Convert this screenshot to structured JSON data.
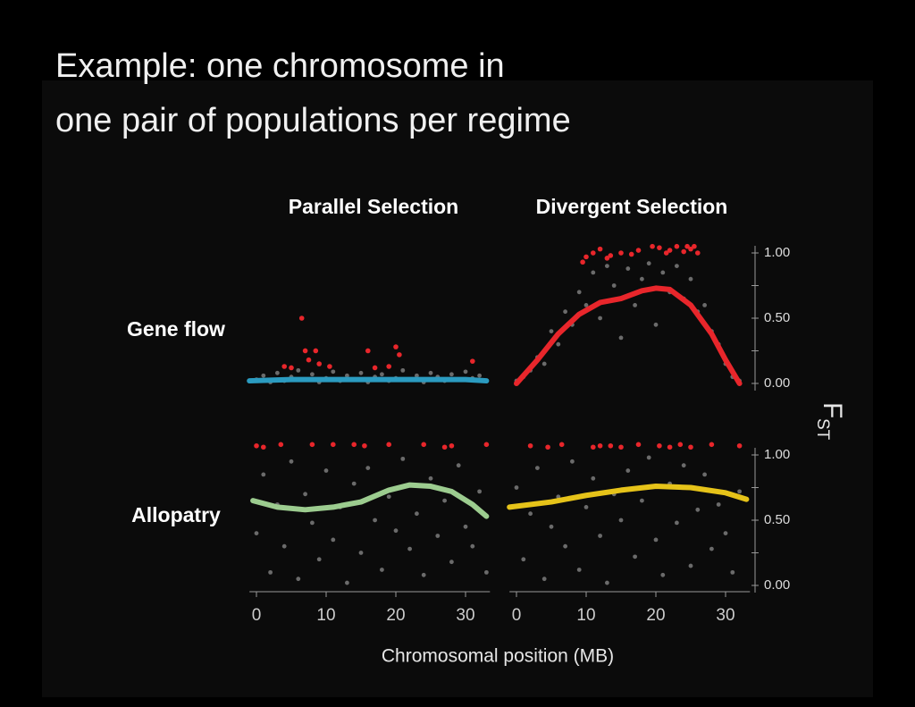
{
  "slide": {
    "title_lines": [
      "Example: one chromosome in",
      "one pair of populations per regime"
    ],
    "columns": [
      "Parallel Selection",
      "Divergent Selection"
    ],
    "rows": [
      "Gene flow",
      "Allopatry"
    ],
    "x_label": "Chromosomal position (MB)",
    "y_label": "F",
    "y_label_sub": "ST"
  },
  "chart_data": [
    {
      "type": "scatter",
      "xlim": [
        -1,
        33.5
      ],
      "ylim": [
        -0.07,
        1.1
      ],
      "series": [
        {
          "kind": "points",
          "color": "#6b6b6b",
          "x": [
            0,
            1,
            2,
            3,
            4,
            5,
            6,
            7,
            8,
            9,
            10,
            11,
            12,
            13,
            14,
            15,
            16,
            17,
            18,
            19,
            20,
            21,
            22,
            23,
            24,
            25,
            26,
            27,
            28,
            29,
            30,
            31,
            32,
            33
          ],
          "values": [
            0.03,
            0.06,
            0.01,
            0.08,
            0.02,
            0.05,
            0.1,
            0.03,
            0.07,
            0.01,
            0.04,
            0.09,
            0.02,
            0.06,
            0.03,
            0.08,
            0.01,
            0.05,
            0.07,
            0.02,
            0.04,
            0.1,
            0.03,
            0.06,
            0.01,
            0.08,
            0.05,
            0.02,
            0.07,
            0.03,
            0.09,
            0.04,
            0.06,
            0.02
          ]
        },
        {
          "kind": "points",
          "color": "#e8262b",
          "x": [
            4,
            5,
            6.5,
            7,
            7.5,
            8.5,
            9,
            10.5,
            16,
            17,
            19,
            20,
            20.5,
            31
          ],
          "values": [
            0.13,
            0.12,
            0.5,
            0.25,
            0.18,
            0.25,
            0.15,
            0.13,
            0.25,
            0.12,
            0.13,
            0.28,
            0.22,
            0.17
          ]
        },
        {
          "kind": "line",
          "color": "#2b9bc0",
          "x": [
            -1,
            5,
            10,
            15,
            20,
            25,
            30,
            33
          ],
          "values": [
            0.02,
            0.03,
            0.03,
            0.03,
            0.03,
            0.03,
            0.03,
            0.02
          ]
        }
      ]
    },
    {
      "type": "scatter",
      "xlim": [
        -1,
        33.5
      ],
      "ylim": [
        -0.07,
        1.1
      ],
      "yticks": [
        {
          "value": 0,
          "label": "0.00"
        },
        {
          "value": 0.5,
          "label": "0.50"
        },
        {
          "value": 1,
          "label": "1.00"
        }
      ],
      "yminor_ticks": [
        0.25,
        0.75
      ],
      "series": [
        {
          "kind": "points",
          "color": "#6b6b6b",
          "x": [
            0,
            1,
            2,
            3,
            4,
            5,
            6,
            7,
            8,
            9,
            10,
            11,
            12,
            13,
            14,
            15,
            16,
            17,
            18,
            19,
            20,
            21,
            22,
            23,
            24,
            25,
            26,
            27,
            28,
            29,
            30,
            31,
            32
          ],
          "values": [
            0.02,
            0.05,
            0.1,
            0.2,
            0.15,
            0.4,
            0.3,
            0.55,
            0.45,
            0.7,
            0.6,
            0.85,
            0.5,
            0.9,
            0.75,
            0.35,
            0.88,
            0.6,
            0.8,
            0.92,
            0.45,
            0.85,
            0.7,
            0.9,
            0.65,
            0.8,
            0.55,
            0.6,
            0.4,
            0.3,
            0.15,
            0.05,
            0.02
          ]
        },
        {
          "kind": "points",
          "color": "#e8262b",
          "x": [
            9.5,
            10,
            11,
            12,
            13,
            13.5,
            15,
            16.5,
            17.5,
            19.5,
            20.5,
            21.5,
            22,
            23,
            24,
            24.5,
            25,
            25.5,
            26
          ],
          "values": [
            0.93,
            0.97,
            1.0,
            1.03,
            0.96,
            0.98,
            1.0,
            0.99,
            1.02,
            1.05,
            1.04,
            1.0,
            1.02,
            1.05,
            1.01,
            1.05,
            1.03,
            1.05,
            1.0
          ]
        },
        {
          "kind": "line",
          "color": "#e8262b",
          "x": [
            0,
            3,
            6,
            9,
            12,
            15,
            18,
            20,
            22,
            25,
            28,
            30,
            32
          ],
          "values": [
            0,
            0.18,
            0.38,
            0.53,
            0.62,
            0.65,
            0.71,
            0.73,
            0.72,
            0.6,
            0.38,
            0.18,
            0
          ]
        }
      ]
    },
    {
      "type": "scatter",
      "xlim": [
        -1,
        33.5
      ],
      "ylim": [
        -0.07,
        1.1
      ],
      "xticks": [
        0,
        10,
        20,
        30
      ],
      "series": [
        {
          "kind": "points",
          "color": "#6b6b6b",
          "x": [
            0,
            1,
            2,
            3,
            4,
            5,
            6,
            7,
            8,
            9,
            10,
            11,
            12,
            13,
            14,
            15,
            16,
            17,
            18,
            19,
            20,
            21,
            22,
            23,
            24,
            25,
            26,
            27,
            28,
            29,
            30,
            31,
            32,
            33
          ],
          "values": [
            0.4,
            0.85,
            0.1,
            0.62,
            0.3,
            0.95,
            0.05,
            0.7,
            0.48,
            0.2,
            0.88,
            0.35,
            0.6,
            0.02,
            0.78,
            0.25,
            0.9,
            0.5,
            0.12,
            0.68,
            0.42,
            0.97,
            0.28,
            0.55,
            0.08,
            0.82,
            0.38,
            0.65,
            0.18,
            0.92,
            0.45,
            0.3,
            0.72,
            0.1
          ]
        },
        {
          "kind": "points",
          "color": "#e8262b",
          "x": [
            0,
            1,
            3.5,
            8,
            11,
            14,
            15.5,
            19,
            24,
            27,
            28,
            33
          ],
          "values": [
            1.07,
            1.06,
            1.08,
            1.08,
            1.08,
            1.08,
            1.07,
            1.08,
            1.08,
            1.06,
            1.07,
            1.08
          ]
        },
        {
          "kind": "line",
          "color": "#9ccc8f",
          "x": [
            -0.5,
            3,
            7,
            11,
            15,
            19,
            22,
            25,
            28,
            31,
            33
          ],
          "values": [
            0.65,
            0.6,
            0.58,
            0.6,
            0.64,
            0.73,
            0.77,
            0.76,
            0.72,
            0.62,
            0.53
          ]
        }
      ]
    },
    {
      "type": "scatter",
      "xlim": [
        -1,
        33.5
      ],
      "ylim": [
        -0.07,
        1.1
      ],
      "xticks": [
        0,
        10,
        20,
        30
      ],
      "yticks": [
        {
          "value": 0,
          "label": "0.00"
        },
        {
          "value": 0.5,
          "label": "0.50"
        },
        {
          "value": 1,
          "label": "1.00"
        }
      ],
      "yminor_ticks": [
        0.25,
        0.75
      ],
      "series": [
        {
          "kind": "points",
          "color": "#6b6b6b",
          "x": [
            0,
            1,
            2,
            3,
            4,
            5,
            6,
            7,
            8,
            9,
            10,
            11,
            12,
            13,
            14,
            15,
            16,
            17,
            18,
            19,
            20,
            21,
            22,
            23,
            24,
            25,
            26,
            27,
            28,
            29,
            30,
            31,
            32
          ],
          "values": [
            0.75,
            0.2,
            0.55,
            0.9,
            0.05,
            0.45,
            0.68,
            0.3,
            0.95,
            0.12,
            0.6,
            0.82,
            0.38,
            0.02,
            0.7,
            0.5,
            0.88,
            0.22,
            0.65,
            0.98,
            0.35,
            0.08,
            0.78,
            0.48,
            0.92,
            0.15,
            0.58,
            0.85,
            0.28,
            0.62,
            0.4,
            0.1,
            0.72
          ]
        },
        {
          "kind": "points",
          "color": "#e8262b",
          "x": [
            2,
            4.5,
            6.5,
            11,
            12,
            13.5,
            15,
            17.5,
            20.5,
            22,
            23.5,
            25,
            28,
            32
          ],
          "values": [
            1.07,
            1.06,
            1.08,
            1.06,
            1.07,
            1.07,
            1.06,
            1.08,
            1.07,
            1.06,
            1.08,
            1.06,
            1.08,
            1.07
          ]
        },
        {
          "kind": "line",
          "color": "#e6c319",
          "x": [
            -1,
            5,
            10,
            15,
            20,
            25,
            30,
            33
          ],
          "values": [
            0.6,
            0.64,
            0.69,
            0.73,
            0.76,
            0.75,
            0.71,
            0.66
          ]
        }
      ]
    }
  ]
}
